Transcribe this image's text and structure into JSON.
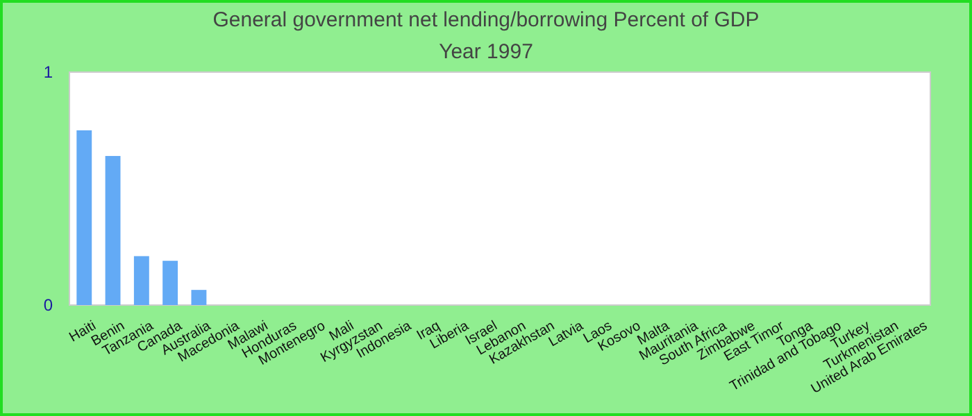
{
  "chart_data": {
    "type": "bar",
    "title": "General government net lending/borrowing  Percent of GDP",
    "subtitle": "Year 1997",
    "categories": [
      "Haiti",
      "Benin",
      "Tanzania",
      "Canada",
      "Australia",
      "Macedonia",
      "Malawi",
      "Honduras",
      "Montenegro",
      "Mali",
      "Kyrgyzstan",
      "Indonesia",
      "Iraq",
      "Liberia",
      "Israel",
      "Lebanon",
      "Kazakhstan",
      "Latvia",
      "Laos",
      "Kosovo",
      "Malta",
      "Mauritania",
      "South Africa",
      "Zimbabwe",
      "East Timor",
      "Tonga",
      "Trinidad and Tobago",
      "Turkey",
      "Turkmenistan",
      "United Arab Emirates"
    ],
    "values": [
      0.75,
      0.64,
      0.21,
      0.19,
      0.065,
      0,
      0,
      0,
      0,
      0,
      0,
      0,
      0,
      0,
      0,
      0,
      0,
      0,
      0,
      0,
      0,
      0,
      0,
      0,
      0,
      0,
      0,
      0,
      0,
      0
    ],
    "color": "#63aaf5",
    "ylim": [
      0,
      1
    ],
    "yticks": [
      0,
      1
    ],
    "grid": false
  }
}
